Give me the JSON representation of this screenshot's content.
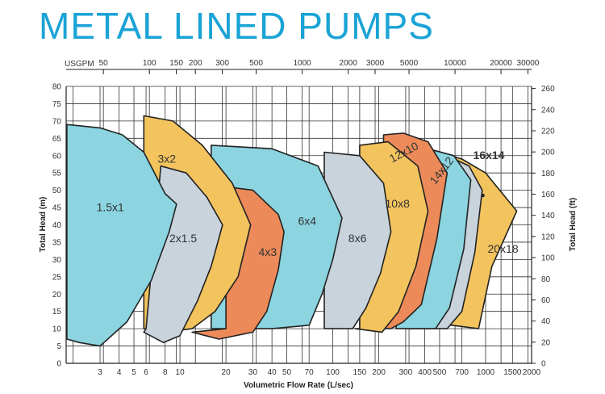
{
  "chart_data": {
    "type": "area",
    "title": "METAL LINED PUMPS",
    "xlabel": "Volumetric Flow Rate (L/sec)",
    "ylabel": "Total Head (m)",
    "ylabel_right": "Total Head (ft)",
    "xlabel_top": "USGPM",
    "x_scale": "log",
    "xlim": [
      1.8,
      2000
    ],
    "ylim": [
      0,
      80
    ],
    "y_right_lim": [
      0,
      262
    ],
    "x_ticks": [
      3,
      4,
      5,
      6,
      8,
      10,
      20,
      30,
      40,
      50,
      70,
      100,
      150,
      200,
      300,
      400,
      500,
      700,
      1000,
      1500,
      2000
    ],
    "y_ticks": [
      0,
      5,
      10,
      15,
      20,
      25,
      30,
      35,
      40,
      45,
      50,
      55,
      60,
      65,
      70,
      75,
      80
    ],
    "y_right_ticks": [
      0,
      20,
      40,
      60,
      80,
      100,
      120,
      140,
      160,
      180,
      200,
      220,
      240,
      260
    ],
    "top_ticks": [
      50,
      100,
      150,
      200,
      300,
      500,
      1000,
      2000,
      3000,
      5000,
      10000,
      20000,
      30000
    ],
    "series": [
      {
        "name": "20x18",
        "color": "#f3c35e",
        "points": [
          [
            340,
            60
          ],
          [
            420,
            62
          ],
          [
            700,
            59
          ],
          [
            1000,
            55
          ],
          [
            1600,
            44
          ],
          [
            1100,
            28
          ],
          [
            900,
            10
          ],
          [
            600,
            11
          ],
          [
            340,
            11
          ]
        ]
      },
      {
        "name": "16x14",
        "color": "#c9d3dc",
        "points": [
          [
            300,
            60
          ],
          [
            500,
            61
          ],
          [
            780,
            57
          ],
          [
            950,
            50
          ],
          [
            850,
            32
          ],
          [
            700,
            15
          ],
          [
            560,
            10
          ],
          [
            300,
            10
          ]
        ]
      },
      {
        "name": "14x12",
        "color": "#8bd4e0",
        "points": [
          [
            260,
            61
          ],
          [
            420,
            62
          ],
          [
            620,
            60
          ],
          [
            800,
            53
          ],
          [
            720,
            33
          ],
          [
            580,
            16
          ],
          [
            470,
            10
          ],
          [
            260,
            10
          ]
        ]
      },
      {
        "name": "12x10",
        "color": "#ec8a5a",
        "points": [
          [
            215,
            66
          ],
          [
            290,
            66.5
          ],
          [
            420,
            64
          ],
          [
            560,
            55
          ],
          [
            480,
            36
          ],
          [
            380,
            17
          ],
          [
            290,
            12
          ],
          [
            240,
            10
          ],
          [
            215,
            10
          ]
        ]
      },
      {
        "name": "10x8",
        "color": "#f3c35e",
        "points": [
          [
            150,
            63
          ],
          [
            230,
            64
          ],
          [
            360,
            57
          ],
          [
            420,
            44
          ],
          [
            350,
            28
          ],
          [
            270,
            15
          ],
          [
            210,
            9
          ],
          [
            140,
            10
          ],
          [
            150,
            10
          ]
        ]
      },
      {
        "name": "8x6",
        "color": "#c9d3dc",
        "points": [
          [
            88,
            61
          ],
          [
            150,
            60
          ],
          [
            215,
            52
          ],
          [
            240,
            38
          ],
          [
            205,
            26
          ],
          [
            165,
            16
          ],
          [
            135,
            10
          ],
          [
            88,
            10
          ]
        ]
      },
      {
        "name": "6x4",
        "color": "#8bd4e0",
        "points": [
          [
            16,
            63
          ],
          [
            40,
            62
          ],
          [
            80,
            57
          ],
          [
            115,
            42
          ],
          [
            100,
            30
          ],
          [
            85,
            20
          ],
          [
            70,
            11
          ],
          [
            40,
            10
          ],
          [
            16,
            10
          ]
        ]
      },
      {
        "name": "4x3",
        "color": "#ec8a5a",
        "points": [
          [
            20,
            51
          ],
          [
            30,
            50
          ],
          [
            44,
            43
          ],
          [
            48,
            38
          ],
          [
            44,
            27
          ],
          [
            37,
            15
          ],
          [
            30,
            9
          ],
          [
            18,
            7
          ],
          [
            12,
            9
          ],
          [
            20,
            10
          ]
        ]
      },
      {
        "name": "3x2",
        "color": "#f3c35e",
        "points": [
          [
            5.8,
            71.5
          ],
          [
            9,
            70
          ],
          [
            14,
            63
          ],
          [
            22,
            52
          ],
          [
            29,
            40
          ],
          [
            24,
            25
          ],
          [
            17,
            15
          ],
          [
            12,
            10
          ],
          [
            8,
            9
          ],
          [
            5.8,
            10
          ]
        ]
      },
      {
        "name": "2x1.5",
        "color": "#c9d3dc",
        "points": [
          [
            7.5,
            57
          ],
          [
            11,
            55
          ],
          [
            15,
            48
          ],
          [
            19,
            40
          ],
          [
            16,
            28
          ],
          [
            13,
            18
          ],
          [
            10,
            8
          ],
          [
            7.8,
            6
          ],
          [
            5.8,
            9
          ],
          [
            6,
            10
          ]
        ]
      },
      {
        "name": "1.5x1",
        "color": "#8bd4e0",
        "points": [
          [
            1.82,
            69
          ],
          [
            3,
            68
          ],
          [
            4.2,
            66
          ],
          [
            5.8,
            61
          ],
          [
            8,
            49
          ],
          [
            9.5,
            46
          ],
          [
            8.5,
            38
          ],
          [
            6.5,
            24
          ],
          [
            4.5,
            12
          ],
          [
            3,
            5
          ],
          [
            2.2,
            6
          ],
          [
            1.82,
            7
          ]
        ]
      }
    ],
    "labels": [
      {
        "text": "1.5x1",
        "x": 3.5,
        "y": 44
      },
      {
        "text": "3x2",
        "x": 8.2,
        "y": 58
      },
      {
        "text": "2x1.5",
        "x": 10.5,
        "y": 35
      },
      {
        "text": "4x3",
        "x": 37.5,
        "y": 31
      },
      {
        "text": "6x4",
        "x": 68,
        "y": 40
      },
      {
        "text": "8x6",
        "x": 145,
        "y": 35
      },
      {
        "text": "10x8",
        "x": 265,
        "y": 45
      },
      {
        "text": "12x10",
        "x": 300,
        "y": 60
      },
      {
        "text": "14x12",
        "x": 540,
        "y": 55
      },
      {
        "text": "16x14",
        "x": 1050,
        "y": 59
      },
      {
        "text": "20x18",
        "x": 1300,
        "y": 32
      }
    ]
  }
}
